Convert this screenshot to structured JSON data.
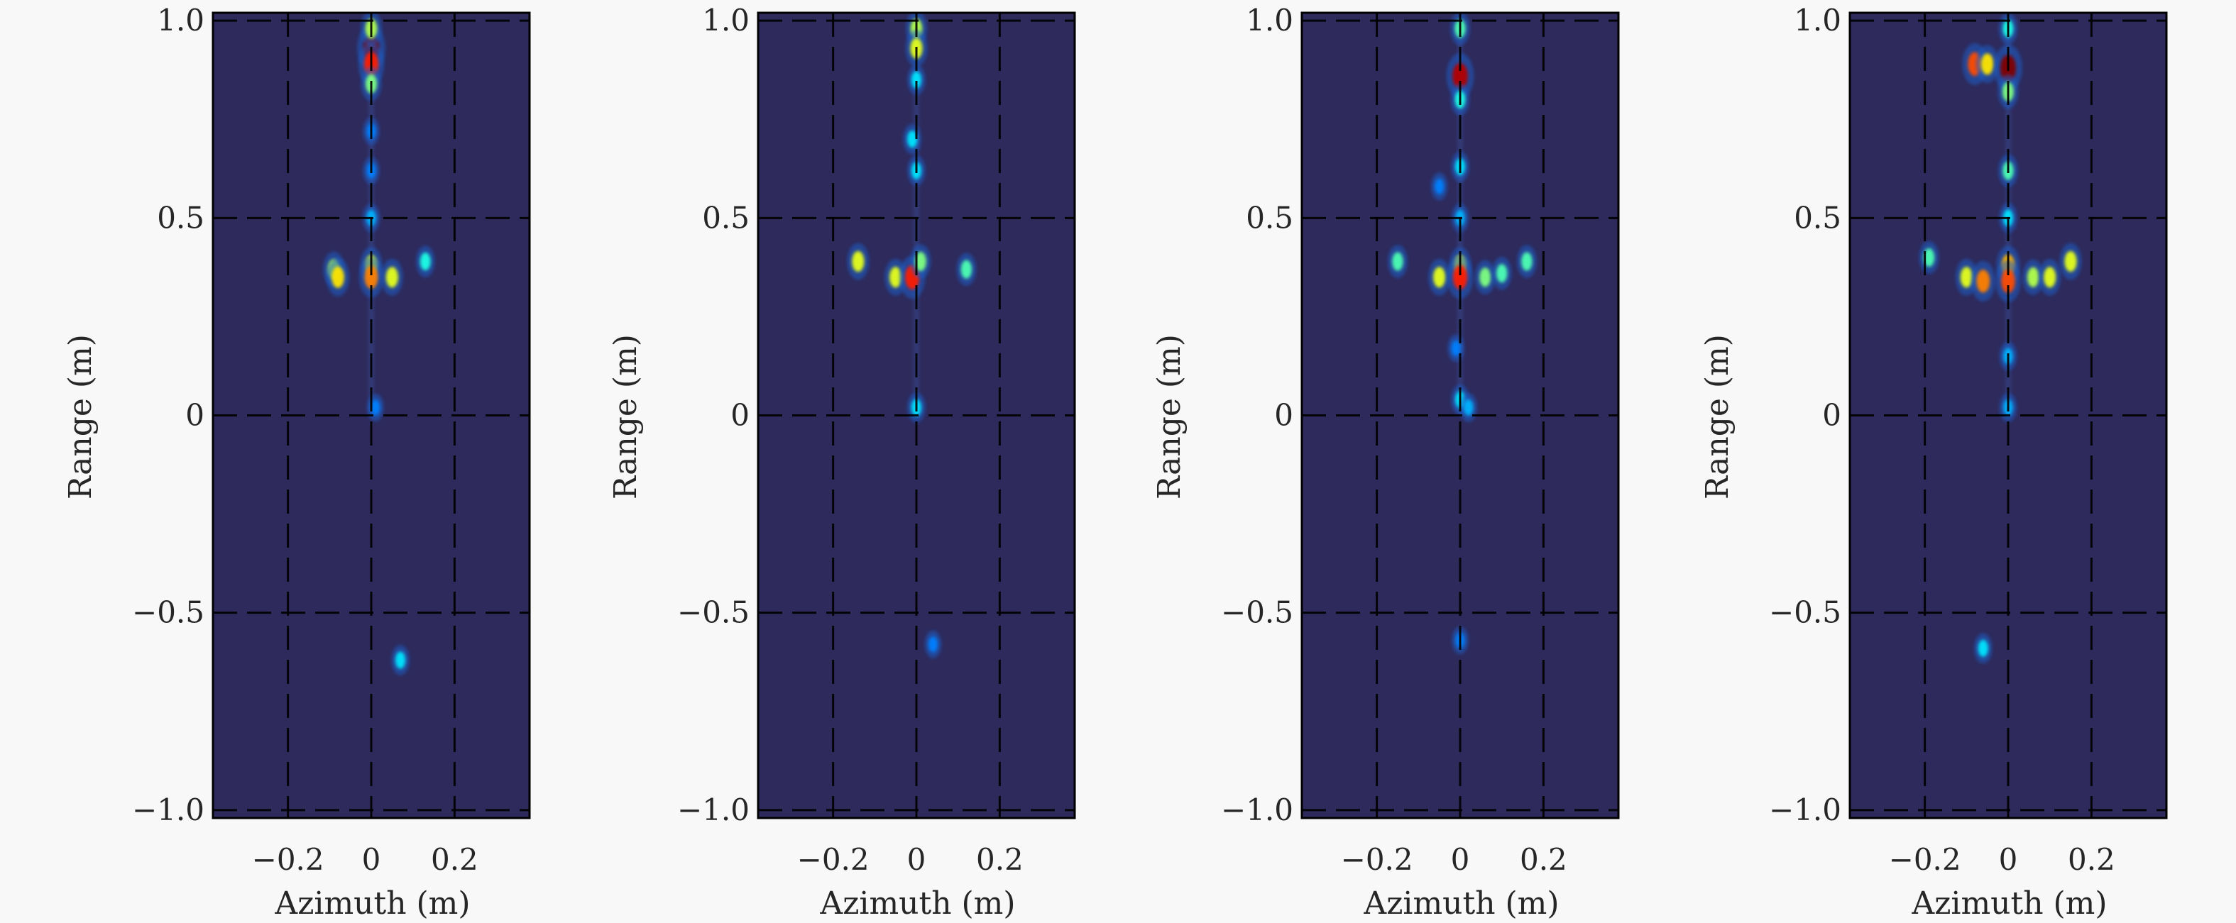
{
  "chart_data": [
    {
      "type": "heatmap",
      "xlabel": "Azimuth (m)",
      "ylabel": "Range (m)",
      "xlim": [
        -0.38,
        0.38
      ],
      "ylim": [
        -1.02,
        1.02
      ],
      "xticks": [
        -0.2,
        0,
        0.2
      ],
      "xtick_labels": [
        "−0.2",
        "0",
        "0.2"
      ],
      "yticks": [
        -1.0,
        -0.5,
        0,
        0.5,
        1.0
      ],
      "ytick_labels": [
        "−1.0",
        "−0.5",
        "0",
        "0.5",
        "1.0"
      ],
      "grid": true,
      "background_color": "#2e2a5c",
      "points": [
        {
          "x": 0.0,
          "y": 0.93,
          "v": 1.0
        },
        {
          "x": 0.0,
          "y": 0.89,
          "v": 0.85
        },
        {
          "x": 0.0,
          "y": 0.98,
          "v": 0.55
        },
        {
          "x": 0.0,
          "y": 0.84,
          "v": 0.5
        },
        {
          "x": 0.0,
          "y": 0.72,
          "v": 0.25
        },
        {
          "x": 0.0,
          "y": 0.62,
          "v": 0.25
        },
        {
          "x": 0.0,
          "y": 0.5,
          "v": 0.3
        },
        {
          "x": -0.09,
          "y": 0.37,
          "v": 0.55
        },
        {
          "x": -0.08,
          "y": 0.35,
          "v": 0.65
        },
        {
          "x": 0.0,
          "y": 0.38,
          "v": 0.6
        },
        {
          "x": 0.0,
          "y": 0.35,
          "v": 0.75
        },
        {
          "x": 0.05,
          "y": 0.35,
          "v": 0.6
        },
        {
          "x": 0.13,
          "y": 0.39,
          "v": 0.4
        },
        {
          "x": 0.01,
          "y": 0.02,
          "v": 0.25
        },
        {
          "x": 0.07,
          "y": -0.62,
          "v": 0.35
        }
      ]
    },
    {
      "type": "heatmap",
      "xlabel": "Azimuth (m)",
      "ylabel": "Range (m)",
      "xlim": [
        -0.38,
        0.38
      ],
      "ylim": [
        -1.02,
        1.02
      ],
      "xticks": [
        -0.2,
        0,
        0.2
      ],
      "xtick_labels": [
        "−0.2",
        "0",
        "0.2"
      ],
      "yticks": [
        -1.0,
        -0.5,
        0,
        0.5,
        1.0
      ],
      "ytick_labels": [
        "−1.0",
        "−0.5",
        "0",
        "0.5",
        "1.0"
      ],
      "grid": true,
      "background_color": "#2e2a5c",
      "points": [
        {
          "x": 0.0,
          "y": 0.98,
          "v": 0.55
        },
        {
          "x": 0.0,
          "y": 0.93,
          "v": 0.6
        },
        {
          "x": 0.0,
          "y": 0.85,
          "v": 0.35
        },
        {
          "x": -0.01,
          "y": 0.7,
          "v": 0.35
        },
        {
          "x": 0.0,
          "y": 0.62,
          "v": 0.35
        },
        {
          "x": -0.14,
          "y": 0.39,
          "v": 0.6
        },
        {
          "x": -0.05,
          "y": 0.35,
          "v": 0.6
        },
        {
          "x": -0.01,
          "y": 0.35,
          "v": 0.85
        },
        {
          "x": 0.01,
          "y": 0.39,
          "v": 0.5
        },
        {
          "x": 0.12,
          "y": 0.37,
          "v": 0.45
        },
        {
          "x": 0.0,
          "y": 0.02,
          "v": 0.35
        },
        {
          "x": 0.04,
          "y": -0.58,
          "v": 0.25
        }
      ]
    },
    {
      "type": "heatmap",
      "xlabel": "Azimuth (m)",
      "ylabel": "Range (m)",
      "xlim": [
        -0.38,
        0.38
      ],
      "ylim": [
        -1.02,
        1.02
      ],
      "xticks": [
        -0.2,
        0,
        0.2
      ],
      "xtick_labels": [
        "−0.2",
        "0",
        "0.2"
      ],
      "yticks": [
        -1.0,
        -0.5,
        0,
        0.5,
        1.0
      ],
      "ytick_labels": [
        "−1.0",
        "−0.5",
        "0",
        "0.5",
        "1.0"
      ],
      "grid": true,
      "background_color": "#2e2a5c",
      "points": [
        {
          "x": 0.0,
          "y": 0.98,
          "v": 0.45
        },
        {
          "x": 0.0,
          "y": 0.86,
          "v": 0.95
        },
        {
          "x": 0.0,
          "y": 0.8,
          "v": 0.4
        },
        {
          "x": 0.0,
          "y": 0.63,
          "v": 0.35
        },
        {
          "x": -0.05,
          "y": 0.58,
          "v": 0.25
        },
        {
          "x": 0.0,
          "y": 0.5,
          "v": 0.3
        },
        {
          "x": -0.15,
          "y": 0.39,
          "v": 0.45
        },
        {
          "x": -0.05,
          "y": 0.35,
          "v": 0.6
        },
        {
          "x": 0.0,
          "y": 0.38,
          "v": 0.6
        },
        {
          "x": 0.0,
          "y": 0.35,
          "v": 0.85
        },
        {
          "x": 0.06,
          "y": 0.35,
          "v": 0.5
        },
        {
          "x": 0.1,
          "y": 0.36,
          "v": 0.45
        },
        {
          "x": 0.16,
          "y": 0.39,
          "v": 0.45
        },
        {
          "x": -0.01,
          "y": 0.17,
          "v": 0.25
        },
        {
          "x": 0.0,
          "y": 0.04,
          "v": 0.35
        },
        {
          "x": 0.02,
          "y": 0.02,
          "v": 0.3
        },
        {
          "x": 0.0,
          "y": -0.57,
          "v": 0.25
        }
      ]
    },
    {
      "type": "heatmap",
      "xlabel": "Azimuth (m)",
      "ylabel": "Range (m)",
      "xlim": [
        -0.38,
        0.38
      ],
      "ylim": [
        -1.02,
        1.02
      ],
      "xticks": [
        -0.2,
        0,
        0.2
      ],
      "xtick_labels": [
        "−0.2",
        "0",
        "0.2"
      ],
      "yticks": [
        -1.0,
        -0.5,
        0,
        0.5,
        1.0
      ],
      "ytick_labels": [
        "−1.0",
        "−0.5",
        "0",
        "0.5",
        "1.0"
      ],
      "grid": true,
      "background_color": "#2e2a5c",
      "points": [
        {
          "x": -0.08,
          "y": 0.89,
          "v": 0.8
        },
        {
          "x": -0.05,
          "y": 0.89,
          "v": 0.65
        },
        {
          "x": 0.0,
          "y": 0.88,
          "v": 1.0
        },
        {
          "x": 0.0,
          "y": 0.98,
          "v": 0.4
        },
        {
          "x": 0.0,
          "y": 0.82,
          "v": 0.5
        },
        {
          "x": 0.0,
          "y": 0.62,
          "v": 0.45
        },
        {
          "x": 0.0,
          "y": 0.5,
          "v": 0.35
        },
        {
          "x": -0.19,
          "y": 0.4,
          "v": 0.45
        },
        {
          "x": -0.1,
          "y": 0.35,
          "v": 0.6
        },
        {
          "x": -0.06,
          "y": 0.34,
          "v": 0.75
        },
        {
          "x": 0.0,
          "y": 0.38,
          "v": 0.7
        },
        {
          "x": 0.0,
          "y": 0.34,
          "v": 0.8
        },
        {
          "x": 0.06,
          "y": 0.35,
          "v": 0.55
        },
        {
          "x": 0.1,
          "y": 0.35,
          "v": 0.6
        },
        {
          "x": 0.15,
          "y": 0.39,
          "v": 0.6
        },
        {
          "x": 0.0,
          "y": 0.15,
          "v": 0.3
        },
        {
          "x": 0.0,
          "y": 0.02,
          "v": 0.3
        },
        {
          "x": -0.06,
          "y": -0.59,
          "v": 0.35
        }
      ]
    }
  ]
}
